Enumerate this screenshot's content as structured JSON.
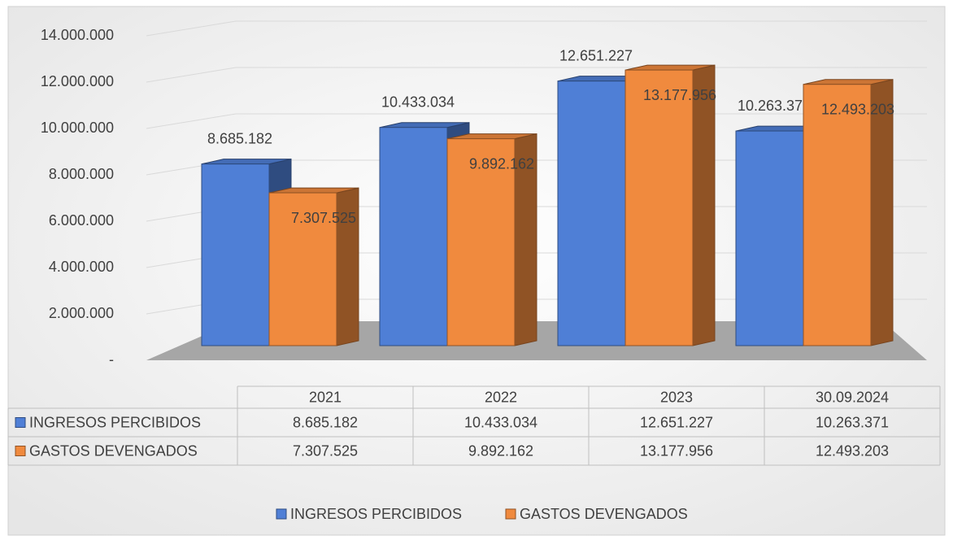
{
  "chart_data": {
    "type": "bar3d",
    "categories": [
      "2021",
      "2022",
      "2023",
      "30.09.2024"
    ],
    "series": [
      {
        "name": "INGRESOS PERCIBIDOS",
        "color": "#4f7fd6",
        "values": [
          8685182,
          10433034,
          12651227,
          10263371
        ],
        "value_labels": [
          "8.685.182",
          "10.433.034",
          "12.651.227",
          "10.263.371"
        ]
      },
      {
        "name": "GASTOS DEVENGADOS",
        "color": "#f08a3e",
        "values": [
          7307525,
          9892162,
          13177956,
          12493203
        ],
        "value_labels": [
          "7.307.525",
          "9.892.162",
          "13.177.956",
          "12.493.203"
        ]
      }
    ],
    "ylim": [
      0,
      14000000
    ],
    "yticks": [
      {
        "value": 0,
        "label": "-"
      },
      {
        "value": 2000000,
        "label": "2.000.000"
      },
      {
        "value": 4000000,
        "label": "4.000.000"
      },
      {
        "value": 6000000,
        "label": "6.000.000"
      },
      {
        "value": 8000000,
        "label": "8.000.000"
      },
      {
        "value": 10000000,
        "label": "10.000.000"
      },
      {
        "value": 12000000,
        "label": "12.000.000"
      },
      {
        "value": 14000000,
        "label": "14.000.000"
      }
    ],
    "grid": true,
    "legend": "bottom",
    "data_table": true
  }
}
